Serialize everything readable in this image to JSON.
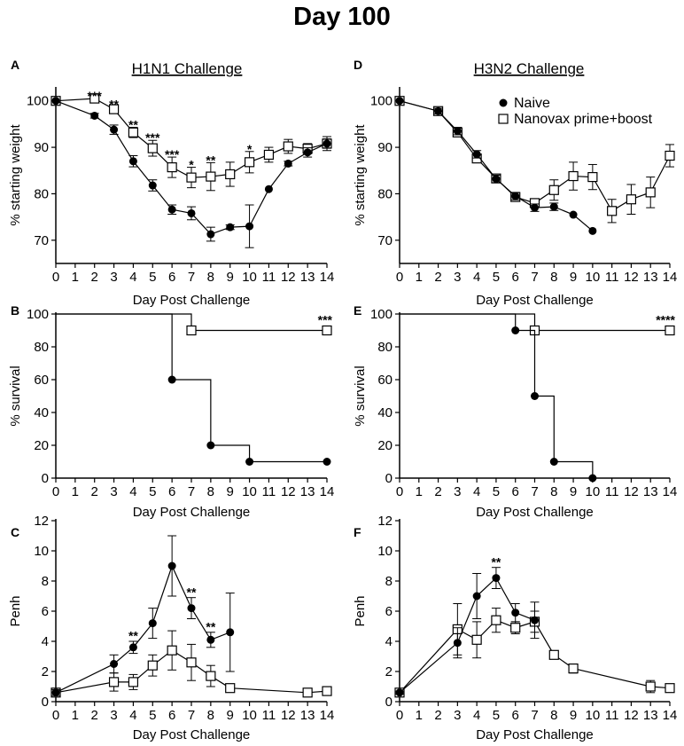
{
  "figure": {
    "title": "Day 100"
  },
  "chart_data": [
    {
      "id": "A",
      "panel_label": "A",
      "type": "line",
      "title": "H1N1 Challenge",
      "xlabel": "Day Post Challenge",
      "ylabel": "% starting weight",
      "xlim": [
        0,
        14
      ],
      "ylim": [
        65,
        103
      ],
      "xticks": [
        0,
        1,
        2,
        3,
        4,
        5,
        6,
        7,
        8,
        9,
        10,
        11,
        12,
        13,
        14
      ],
      "yticks": [
        70,
        80,
        90,
        100
      ],
      "series": [
        {
          "name": "Naive",
          "marker": "filled-circle",
          "x": [
            0,
            2,
            3,
            4,
            5,
            6,
            7,
            8,
            9,
            10,
            11,
            12,
            13,
            14
          ],
          "y": [
            100,
            96.8,
            93.8,
            87,
            81.8,
            76.6,
            75.8,
            71.3,
            72.8,
            73,
            81,
            86.5,
            88.9,
            90.8
          ],
          "err": [
            0,
            0.5,
            1,
            1.2,
            1.2,
            1,
            1.4,
            1.5,
            0.5,
            4.6,
            0,
            0.5,
            1,
            1
          ]
        },
        {
          "name": "Nanovax prime+boost",
          "marker": "open-square",
          "x": [
            0,
            2,
            3,
            4,
            5,
            6,
            7,
            8,
            9,
            10,
            11,
            12,
            13,
            14
          ],
          "y": [
            100,
            100.5,
            98.2,
            93.2,
            89.8,
            85.7,
            83.5,
            83.7,
            84.2,
            86.8,
            88.4,
            90.2,
            89.7,
            90.8
          ],
          "err": [
            0,
            0,
            0.5,
            1.1,
            1.7,
            2.2,
            2.2,
            3,
            2.6,
            2.3,
            1.6,
            1.5,
            1.1,
            1.5
          ]
        }
      ],
      "annotations": [
        {
          "x": 2,
          "y": 100.5,
          "text": "***"
        },
        {
          "x": 3,
          "y": 98.7,
          "text": "**"
        },
        {
          "x": 4,
          "y": 94.3,
          "text": "**"
        },
        {
          "x": 5,
          "y": 91.5,
          "text": "***"
        },
        {
          "x": 6,
          "y": 87.9,
          "text": "***"
        },
        {
          "x": 7,
          "y": 85.7,
          "text": "*"
        },
        {
          "x": 8,
          "y": 86.7,
          "text": "**"
        },
        {
          "x": 10,
          "y": 89.1,
          "text": "*"
        }
      ]
    },
    {
      "id": "D",
      "panel_label": "D",
      "type": "line",
      "title": "H3N2 Challenge",
      "xlabel": "Day Post Challenge",
      "ylabel": "% starting weight",
      "xlim": [
        0,
        14
      ],
      "ylim": [
        65,
        103
      ],
      "xticks": [
        0,
        1,
        2,
        3,
        4,
        5,
        6,
        7,
        8,
        9,
        10,
        11,
        12,
        13,
        14
      ],
      "yticks": [
        70,
        80,
        90,
        100
      ],
      "legend": {
        "placement": "top-right",
        "entries": [
          "Naive",
          "Nanovax prime+boost"
        ]
      },
      "series": [
        {
          "name": "Naive",
          "marker": "filled-circle",
          "x": [
            0,
            2,
            3,
            4,
            5,
            6,
            7,
            8,
            9,
            10
          ],
          "y": [
            100,
            97.8,
            93.5,
            88.5,
            83.2,
            79.5,
            77,
            77.2,
            75.5,
            72
          ],
          "err": [
            0,
            0.6,
            0.8,
            0.8,
            0.8,
            0.8,
            0.8,
            0.8,
            0,
            0
          ]
        },
        {
          "name": "Nanovax prime+boost",
          "marker": "open-square",
          "x": [
            0,
            2,
            3,
            4,
            5,
            6,
            7,
            8,
            9,
            10,
            11,
            12,
            13,
            14
          ],
          "y": [
            100,
            97.8,
            93.2,
            87.6,
            83.3,
            79.3,
            78,
            80.8,
            83.8,
            83.6,
            76.3,
            78.8,
            80.3,
            88.2
          ],
          "err": [
            0,
            0.6,
            0.8,
            0.8,
            0.8,
            0.8,
            0.8,
            2.2,
            3,
            2.7,
            2.5,
            3.2,
            3.3,
            2.4
          ]
        }
      ],
      "annotations": []
    },
    {
      "id": "B",
      "panel_label": "B",
      "type": "line",
      "step": true,
      "xlabel": "Day Post Challenge",
      "ylabel": "% survival",
      "xlim": [
        0,
        14
      ],
      "ylim": [
        0,
        100
      ],
      "xticks": [
        0,
        1,
        2,
        3,
        4,
        5,
        6,
        7,
        8,
        9,
        10,
        11,
        12,
        13,
        14
      ],
      "yticks": [
        0,
        20,
        40,
        60,
        80,
        100
      ],
      "series": [
        {
          "name": "Naive",
          "marker": "filled-circle",
          "x": [
            0,
            6,
            8,
            10,
            14
          ],
          "y": [
            100,
            60,
            20,
            10,
            10
          ],
          "markers_at": [
            6,
            8,
            10,
            14
          ]
        },
        {
          "name": "Nanovax prime+boost",
          "marker": "open-square",
          "x": [
            0,
            7,
            14
          ],
          "y": [
            100,
            90,
            90
          ],
          "markers_at": [
            7,
            14
          ]
        }
      ],
      "annotations": [
        {
          "x": 14,
          "y": 95,
          "text": "***"
        }
      ]
    },
    {
      "id": "E",
      "panel_label": "E",
      "type": "line",
      "step": true,
      "xlabel": "Day Post Challenge",
      "ylabel": "% survival",
      "xlim": [
        0,
        14
      ],
      "ylim": [
        0,
        100
      ],
      "xticks": [
        0,
        1,
        2,
        3,
        4,
        5,
        6,
        7,
        8,
        9,
        10,
        11,
        12,
        13,
        14
      ],
      "yticks": [
        0,
        20,
        40,
        60,
        80,
        100
      ],
      "series": [
        {
          "name": "Naive",
          "marker": "filled-circle",
          "x": [
            0,
            6,
            7,
            8,
            10
          ],
          "y": [
            100,
            90,
            50,
            10,
            0
          ],
          "markers_at": [
            6,
            7,
            8,
            10
          ]
        },
        {
          "name": "Nanovax prime+boost",
          "marker": "open-square",
          "x": [
            0,
            7,
            14
          ],
          "y": [
            100,
            90,
            90
          ],
          "markers_at": [
            7,
            14
          ]
        }
      ],
      "annotations": [
        {
          "x": 14,
          "y": 95,
          "text": "****"
        }
      ]
    },
    {
      "id": "C",
      "panel_label": "C",
      "type": "line",
      "xlabel": "Day Post Challenge",
      "ylabel": "Penh",
      "xlim": [
        0,
        14
      ],
      "ylim": [
        0,
        12
      ],
      "xticks": [
        0,
        1,
        2,
        3,
        4,
        5,
        6,
        7,
        8,
        9,
        10,
        11,
        12,
        13,
        14
      ],
      "yticks": [
        0,
        2,
        4,
        6,
        8,
        10,
        12
      ],
      "series": [
        {
          "name": "Naive",
          "marker": "filled-circle",
          "x": [
            0,
            3,
            4,
            5,
            6,
            7,
            8,
            9
          ],
          "y": [
            0.6,
            2.5,
            3.6,
            5.2,
            9.0,
            6.2,
            4.1,
            4.6
          ],
          "err": [
            0.2,
            0.6,
            0.4,
            1,
            2,
            0.7,
            0.5,
            2.6
          ]
        },
        {
          "name": "Nanovax prime+boost",
          "marker": "open-square",
          "x": [
            0,
            3,
            4,
            5,
            6,
            7,
            8,
            9,
            13,
            14
          ],
          "y": [
            0.6,
            1.3,
            1.3,
            2.4,
            3.4,
            2.6,
            1.7,
            0.9,
            0.6,
            0.7
          ],
          "err": [
            0.2,
            0.6,
            0.5,
            0.7,
            1.3,
            1.2,
            0.7,
            0.1,
            0.1,
            0.1
          ]
        }
      ],
      "annotations": [
        {
          "x": 4,
          "y": 4.2,
          "text": "**"
        },
        {
          "x": 7,
          "y": 7.1,
          "text": "**"
        },
        {
          "x": 8,
          "y": 4.8,
          "text": "**"
        }
      ]
    },
    {
      "id": "F",
      "panel_label": "F",
      "type": "line",
      "xlabel": "Day Post Challenge",
      "ylabel": "Penh",
      "xlim": [
        0,
        14
      ],
      "ylim": [
        0,
        12
      ],
      "xticks": [
        0,
        1,
        2,
        3,
        4,
        5,
        6,
        7,
        8,
        9,
        10,
        11,
        12,
        13,
        14
      ],
      "yticks": [
        0,
        2,
        4,
        6,
        8,
        10,
        12
      ],
      "series": [
        {
          "name": "Naive",
          "marker": "filled-circle",
          "x": [
            0,
            3,
            4,
            5,
            6,
            7
          ],
          "y": [
            0.6,
            3.9,
            7.0,
            8.2,
            5.9,
            5.4
          ],
          "err": [
            0.1,
            1,
            1.5,
            0.7,
            0.6,
            1.2
          ]
        },
        {
          "name": "Nanovax prime+boost",
          "marker": "open-square",
          "x": [
            0,
            3,
            4,
            5,
            6,
            7,
            8,
            9,
            13,
            14
          ],
          "y": [
            0.6,
            4.8,
            4.1,
            5.4,
            4.9,
            5.3,
            3.1,
            2.2,
            1.0,
            0.9
          ],
          "err": [
            0.1,
            1.7,
            1.2,
            0.8,
            0.4,
            0.7,
            0.1,
            0.3,
            0.4,
            0.2
          ]
        }
      ],
      "annotations": [
        {
          "x": 5,
          "y": 9.1,
          "text": "**"
        }
      ]
    }
  ]
}
